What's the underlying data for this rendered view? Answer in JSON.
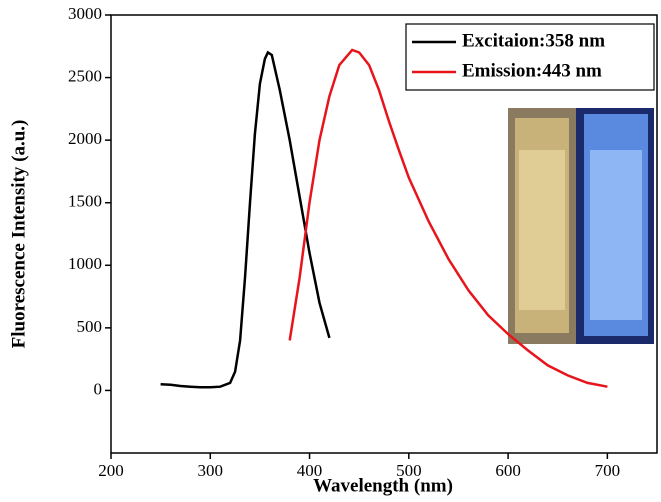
{
  "chart_data": {
    "type": "line",
    "xlabel": "Wavelength (nm)",
    "ylabel": "Fluorescence Intensity (a.u.)",
    "xlim": [
      200,
      750
    ],
    "xticks": [
      200,
      300,
      400,
      500,
      600,
      700
    ],
    "ylim": [
      -500,
      3000
    ],
    "yticks": [
      0,
      500,
      1000,
      1500,
      2000,
      2500,
      3000
    ],
    "legend": "upper right",
    "series": [
      {
        "name": "Excitaion:358 nm",
        "color": "#000000",
        "x": [
          250,
          260,
          270,
          280,
          290,
          300,
          310,
          320,
          325,
          330,
          335,
          340,
          345,
          350,
          355,
          358,
          362,
          370,
          380,
          390,
          400,
          410,
          420
        ],
        "values": [
          50,
          45,
          35,
          30,
          25,
          25,
          30,
          60,
          150,
          400,
          900,
          1500,
          2050,
          2450,
          2650,
          2700,
          2680,
          2400,
          2000,
          1550,
          1100,
          700,
          420
        ]
      },
      {
        "name": "Emission:443 nm",
        "color": "#e8141b",
        "x": [
          380,
          390,
          400,
          410,
          420,
          430,
          443,
          450,
          460,
          470,
          480,
          490,
          500,
          520,
          540,
          560,
          580,
          600,
          620,
          640,
          660,
          680,
          700
        ],
        "values": [
          400,
          900,
          1500,
          2000,
          2350,
          2600,
          2720,
          2700,
          2600,
          2400,
          2150,
          1920,
          1700,
          1350,
          1050,
          800,
          600,
          450,
          320,
          200,
          120,
          60,
          30
        ]
      }
    ]
  }
}
